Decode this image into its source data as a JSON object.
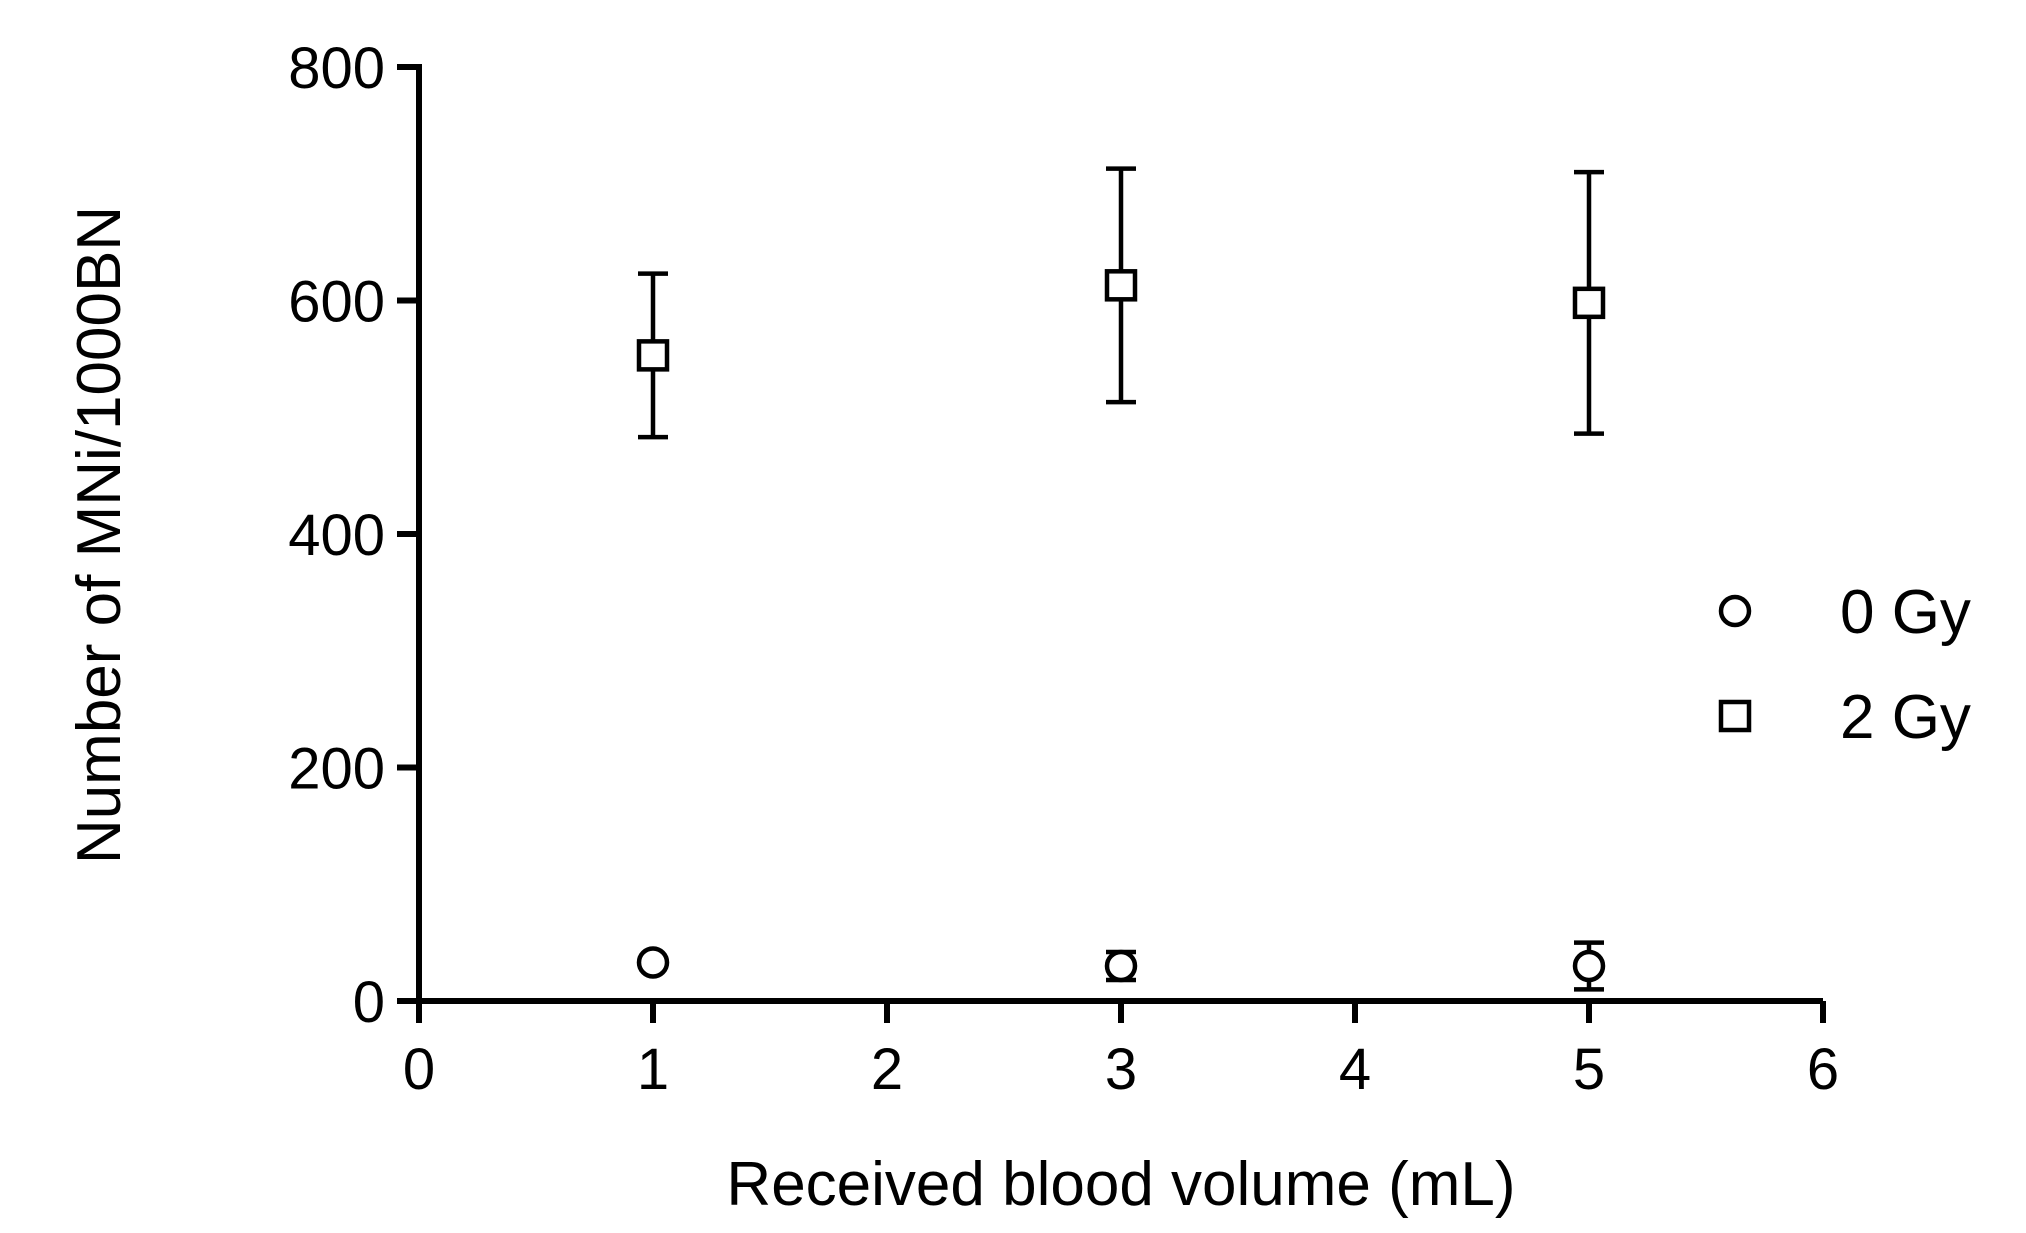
{
  "chart_data": {
    "type": "scatter",
    "title": "",
    "xlabel": "Received blood volume (mL)",
    "ylabel": "Number of MNi/1000BN",
    "xlim": [
      0,
      6
    ],
    "ylim": [
      0,
      800
    ],
    "xticks": [
      "0",
      "1",
      "2",
      "3",
      "4",
      "5",
      "6"
    ],
    "yticks": [
      "0",
      "200",
      "400",
      "600",
      "800"
    ],
    "grid": false,
    "legend_position": "right",
    "error_bars": true,
    "series": [
      {
        "name": "0 Gy",
        "marker": "circle",
        "x": [
          1,
          3,
          5
        ],
        "y": [
          33,
          30,
          30
        ],
        "error": [
          3,
          12,
          20
        ]
      },
      {
        "name": "2 Gy",
        "marker": "square",
        "x": [
          1,
          3,
          5
        ],
        "y": [
          553,
          613,
          598
        ],
        "error": [
          70,
          100,
          112
        ]
      }
    ]
  }
}
